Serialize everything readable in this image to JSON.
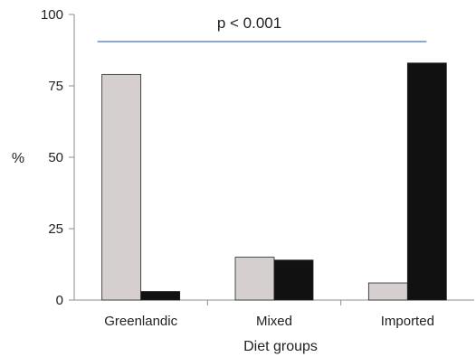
{
  "chart_data": {
    "type": "bar",
    "categories": [
      "Greenlandic",
      "Mixed",
      "Imported"
    ],
    "series": [
      {
        "values": [
          79,
          15,
          6
        ],
        "color": "#d5d0cf"
      },
      {
        "values": [
          3,
          14,
          83
        ],
        "color": "#111111"
      }
    ],
    "title": "",
    "xlabel": "Diet groups",
    "ylabel": "%",
    "ylim": [
      0,
      100
    ],
    "yticks": [
      0,
      25,
      50,
      75,
      100
    ],
    "grid": false,
    "legend": "none",
    "annotation": {
      "text": "p < 0.001",
      "line_color": "#4a72b8",
      "spans": [
        "Greenlandic",
        "Imported"
      ]
    },
    "bar_edge_color": "#222222",
    "axis_color": "#8c8c8c"
  }
}
